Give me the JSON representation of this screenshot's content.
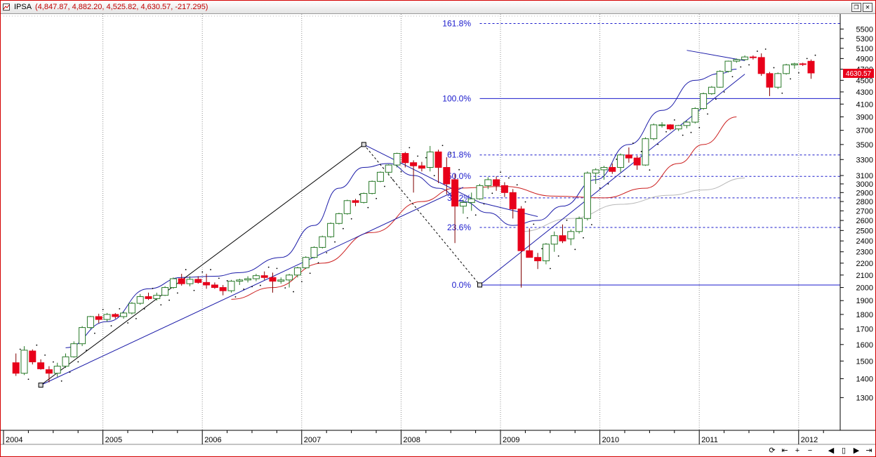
{
  "window": {
    "symbol": "IPSA",
    "ohlc": "(4,847.87, 4,882.20, 4,525.82, 4,630.57, -217.295)"
  },
  "last_price": "4630.57",
  "colors": {
    "up": "#2a7a2a",
    "down": "#e8001a",
    "fib": "#1a1acc",
    "ma_blue": "#1a1aa8",
    "ma_red": "#cc1f1f",
    "ma_gray": "#b8b8b8"
  },
  "icons": {
    "title": "chart-icon",
    "restore": "restore-icon",
    "close": "close-icon"
  },
  "chart_data": {
    "type": "candlestick",
    "x_ticks": [
      "2004",
      "2005",
      "2006",
      "2007",
      "2008",
      "2009",
      "2010",
      "2011",
      "2012"
    ],
    "y_ticks": [
      1300,
      1400,
      1500,
      1600,
      1700,
      1800,
      1900,
      2000,
      2100,
      2200,
      2300,
      2400,
      2500,
      2600,
      2700,
      2800,
      2900,
      3000,
      3100,
      3300,
      3500,
      3700,
      3900,
      4100,
      4300,
      4500,
      4700,
      4900,
      5100,
      5300,
      5500
    ],
    "y_scale": "log",
    "ylim": [
      1150,
      5800
    ],
    "fib_levels": [
      {
        "label": "161.8%",
        "value": 5620,
        "style": "dashed"
      },
      {
        "label": "100.0%",
        "value": 4190,
        "style": "solid"
      },
      {
        "label": "61.8%",
        "value": 3360,
        "style": "dashed"
      },
      {
        "label": "50.0%",
        "value": 3090,
        "style": "dashed"
      },
      {
        "label": "38.2%",
        "value": 2840,
        "style": "dashed"
      },
      {
        "label": "23.6%",
        "value": 2530,
        "style": "dashed"
      },
      {
        "label": "0.0%",
        "value": 2020,
        "style": "solid"
      }
    ],
    "candles_start": "2004-02",
    "candles": [
      [
        1490,
        1545,
        1415,
        1430
      ],
      [
        1430,
        1590,
        1420,
        1565
      ],
      [
        1560,
        1570,
        1480,
        1495
      ],
      [
        1490,
        1510,
        1450,
        1455
      ],
      [
        1450,
        1470,
        1380,
        1430
      ],
      [
        1430,
        1490,
        1410,
        1470
      ],
      [
        1470,
        1545,
        1460,
        1525
      ],
      [
        1525,
        1620,
        1520,
        1605
      ],
      [
        1605,
        1720,
        1590,
        1710
      ],
      [
        1710,
        1790,
        1700,
        1785
      ],
      [
        1785,
        1805,
        1740,
        1765
      ],
      [
        1765,
        1810,
        1750,
        1800
      ],
      [
        1800,
        1810,
        1770,
        1785
      ],
      [
        1785,
        1820,
        1770,
        1810
      ],
      [
        1810,
        1890,
        1800,
        1880
      ],
      [
        1880,
        1950,
        1870,
        1930
      ],
      [
        1930,
        1960,
        1905,
        1915
      ],
      [
        1915,
        1960,
        1900,
        1940
      ],
      [
        1940,
        2010,
        1935,
        2000
      ],
      [
        2000,
        2080,
        1990,
        2070
      ],
      [
        2070,
        2110,
        2015,
        2030
      ],
      [
        2030,
        2090,
        2010,
        2065
      ],
      [
        2065,
        2090,
        2030,
        2040
      ],
      [
        2040,
        2110,
        1990,
        2020
      ],
      [
        2020,
        2040,
        1990,
        2000
      ],
      [
        2000,
        2020,
        1940,
        1975
      ],
      [
        1975,
        2060,
        1960,
        2050
      ],
      [
        2050,
        2070,
        2020,
        2060
      ],
      [
        2060,
        2090,
        2040,
        2070
      ],
      [
        2070,
        2110,
        2050,
        2095
      ],
      [
        2095,
        2130,
        2060,
        2080
      ],
      [
        2080,
        2120,
        1960,
        2050
      ],
      [
        2050,
        2080,
        2030,
        2060
      ],
      [
        2060,
        2110,
        2000,
        2100
      ],
      [
        2100,
        2170,
        2080,
        2160
      ],
      [
        2160,
        2260,
        2150,
        2250
      ],
      [
        2250,
        2350,
        2240,
        2340
      ],
      [
        2340,
        2450,
        2330,
        2440
      ],
      [
        2440,
        2580,
        2430,
        2570
      ],
      [
        2570,
        2680,
        2560,
        2670
      ],
      [
        2670,
        2820,
        2660,
        2810
      ],
      [
        2810,
        2830,
        2750,
        2790
      ],
      [
        2790,
        2900,
        2780,
        2890
      ],
      [
        2890,
        3040,
        2880,
        3030
      ],
      [
        3030,
        3150,
        3020,
        3140
      ],
      [
        3140,
        3240,
        3100,
        3230
      ],
      [
        3230,
        3390,
        3200,
        3380
      ],
      [
        3380,
        3400,
        3200,
        3260
      ],
      [
        3260,
        3290,
        2900,
        3220
      ],
      [
        3220,
        3270,
        3150,
        3190
      ],
      [
        3200,
        3480,
        3150,
        3400
      ],
      [
        3400,
        3430,
        3010,
        3200
      ],
      [
        3200,
        3330,
        2880,
        3000
      ],
      [
        3050,
        3120,
        2380,
        2750
      ],
      [
        2750,
        2820,
        2670,
        2790
      ],
      [
        2790,
        2900,
        2700,
        2830
      ],
      [
        2830,
        3000,
        2820,
        2980
      ],
      [
        2980,
        3080,
        2940,
        3050
      ],
      [
        3050,
        3090,
        2920,
        2980
      ],
      [
        2980,
        3020,
        2850,
        2900
      ],
      [
        2900,
        2940,
        2620,
        2720
      ],
      [
        2720,
        2750,
        2000,
        2310
      ],
      [
        2310,
        2520,
        2250,
        2250
      ],
      [
        2250,
        2290,
        2150,
        2220
      ],
      [
        2220,
        2380,
        2190,
        2370
      ],
      [
        2370,
        2490,
        2300,
        2450
      ],
      [
        2450,
        2560,
        2380,
        2400
      ],
      [
        2420,
        2510,
        2360,
        2490
      ],
      [
        2490,
        2640,
        2470,
        2620
      ],
      [
        2620,
        3150,
        2600,
        3130
      ],
      [
        3130,
        3190,
        3000,
        3170
      ],
      [
        3170,
        3220,
        3050,
        3200
      ],
      [
        3200,
        3250,
        3120,
        3150
      ],
      [
        3200,
        3380,
        3140,
        3360
      ],
      [
        3360,
        3460,
        3260,
        3320
      ],
      [
        3320,
        3350,
        3170,
        3230
      ],
      [
        3230,
        3600,
        3220,
        3580
      ],
      [
        3580,
        3800,
        3560,
        3780
      ],
      [
        3780,
        3820,
        3740,
        3780
      ],
      [
        3780,
        3790,
        3700,
        3720
      ],
      [
        3720,
        3780,
        3690,
        3770
      ],
      [
        3770,
        3840,
        3730,
        3820
      ],
      [
        3820,
        4050,
        3800,
        4030
      ],
      [
        4030,
        4290,
        4010,
        4270
      ],
      [
        4270,
        4400,
        4250,
        4380
      ],
      [
        4380,
        4680,
        4370,
        4660
      ],
      [
        4660,
        4860,
        4640,
        4850
      ],
      [
        4850,
        4900,
        4820,
        4880
      ],
      [
        4880,
        4960,
        4860,
        4930
      ],
      [
        4930,
        4960,
        4880,
        4920
      ],
      [
        4920,
        5000,
        4580,
        4620
      ],
      [
        4620,
        4650,
        4230,
        4380
      ],
      [
        4380,
        4640,
        4350,
        4620
      ],
      [
        4620,
        4800,
        4600,
        4780
      ],
      [
        4780,
        4820,
        4710,
        4800
      ],
      [
        4800,
        4820,
        4760,
        4790
      ],
      [
        4847.87,
        4882.2,
        4525.82,
        4630.57
      ]
    ],
    "moving_averages": [
      {
        "color": "blue",
        "points": [
          [
            "2004-08",
            1580
          ],
          [
            "2005-01",
            1750
          ],
          [
            "2005-06",
            1990
          ],
          [
            "2005-10",
            2080
          ],
          [
            "2006-02",
            2090
          ],
          [
            "2006-05",
            2120
          ],
          [
            "2006-10",
            2250
          ],
          [
            "2007-02",
            2550
          ],
          [
            "2007-05",
            2950
          ],
          [
            "2007-08",
            3200
          ],
          [
            "2007-11",
            3250
          ],
          [
            "2008-02",
            3100
          ],
          [
            "2008-05",
            2950
          ],
          [
            "2008-08",
            2800
          ],
          [
            "2008-11",
            2680
          ],
          [
            "2009-02",
            2550
          ],
          [
            "2009-05",
            2600
          ],
          [
            "2009-08",
            2750
          ],
          [
            "2009-12",
            3050
          ],
          [
            "2010-04",
            3500
          ],
          [
            "2010-08",
            4000
          ],
          [
            "2010-12",
            4500
          ],
          [
            "2011-03",
            4620
          ],
          [
            "2011-05",
            4700
          ]
        ]
      },
      {
        "color": "red",
        "points": [
          [
            "2006-04",
            1910
          ],
          [
            "2006-09",
            2000
          ],
          [
            "2007-03",
            2200
          ],
          [
            "2007-09",
            2480
          ],
          [
            "2008-03",
            2800
          ],
          [
            "2008-07",
            2950
          ],
          [
            "2009-01",
            2970
          ],
          [
            "2009-07",
            2860
          ],
          [
            "2010-01",
            2840
          ],
          [
            "2010-06",
            2950
          ],
          [
            "2010-10",
            3250
          ],
          [
            "2011-01",
            3500
          ],
          [
            "2011-05",
            3900
          ]
        ]
      },
      {
        "color": "gray",
        "points": [
          [
            "2009-03",
            2490
          ],
          [
            "2009-09",
            2620
          ],
          [
            "2010-03",
            2770
          ],
          [
            "2010-09",
            2870
          ],
          [
            "2011-01",
            2930
          ],
          [
            "2011-06",
            3070
          ]
        ]
      }
    ],
    "trendlines": [
      {
        "color": "black",
        "points": [
          [
            "2004-05",
            1365
          ],
          [
            "2007-08",
            3500
          ]
        ]
      },
      {
        "color": "blue",
        "points": [
          [
            "2004-05",
            1365
          ],
          [
            "2008-08",
            2960
          ]
        ]
      },
      {
        "color": "blue",
        "points": [
          [
            "2007-08",
            3500
          ],
          [
            "2008-10",
            2790
          ],
          [
            "2009-05",
            2640
          ]
        ]
      },
      {
        "color": "blue",
        "points": [
          [
            "2008-10",
            2020
          ],
          [
            "2011-06",
            4610
          ]
        ]
      },
      {
        "color": "blue",
        "points": [
          [
            "2010-11",
            5060
          ],
          [
            "2011-06",
            4860
          ]
        ]
      },
      {
        "color": "black",
        "dashed": true,
        "points": [
          [
            "2007-08",
            3500
          ],
          [
            "2008-10",
            2020
          ]
        ]
      }
    ]
  }
}
